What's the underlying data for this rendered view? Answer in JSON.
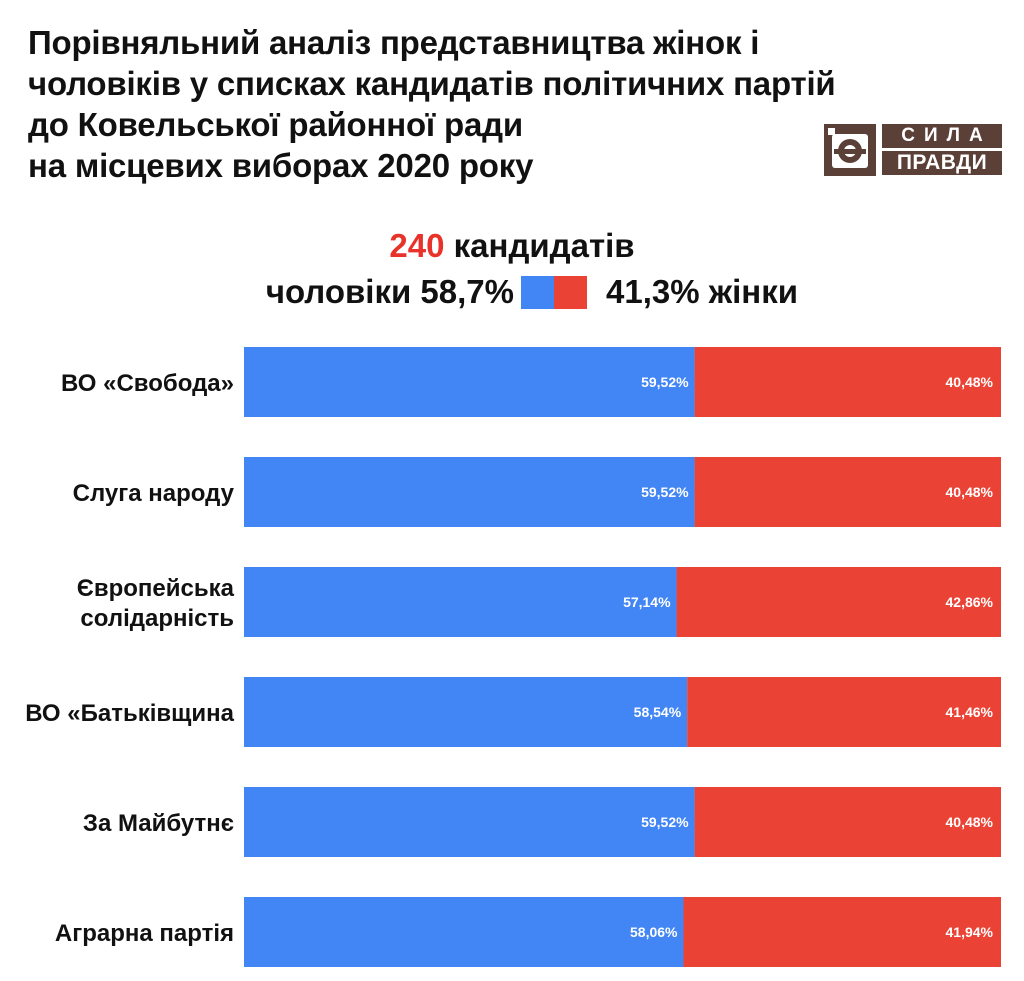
{
  "title_lines": [
    "Порівняльний аналіз представництва жінок і",
    "чоловіків у списках кандидатів політичних партій",
    "до Ковельської районної ради",
    "на місцевих виборах 2020 року"
  ],
  "logo": {
    "line1": "СИЛА",
    "line2": "ПРАВДИ"
  },
  "summary": {
    "count": "240",
    "count_label": "кандидатів",
    "men_text": "чоловіки 58,7%",
    "women_text": "41,3% жінки"
  },
  "colors": {
    "men": "#4285f4",
    "women": "#ea4335",
    "highlight": "#e8332a",
    "logo": "#5b4038"
  },
  "chart_data": {
    "type": "bar",
    "orientation": "horizontal",
    "stacked": true,
    "xlim": [
      0,
      100
    ],
    "categories": [
      [
        "ВО «Свобода»"
      ],
      [
        "Слуга народу"
      ],
      [
        "Європейська",
        "солідарність"
      ],
      [
        "ВО «Батьківщина"
      ],
      [
        "За Майбутнє"
      ],
      [
        "Аграрна партія"
      ]
    ],
    "series": [
      {
        "name": "чоловіки",
        "color": "#4285f4",
        "values": [
          59.52,
          59.52,
          57.14,
          58.54,
          59.52,
          58.06
        ],
        "labels": [
          "59,52%",
          "59,52%",
          "57,14%",
          "58,54%",
          "59,52%",
          "58,06%"
        ]
      },
      {
        "name": "жінки",
        "color": "#ea4335",
        "values": [
          40.48,
          40.48,
          42.86,
          41.46,
          40.48,
          41.94
        ],
        "labels": [
          "40,48%",
          "40,48%",
          "42,86%",
          "41,46%",
          "40,48%",
          "41,94%"
        ]
      }
    ]
  }
}
